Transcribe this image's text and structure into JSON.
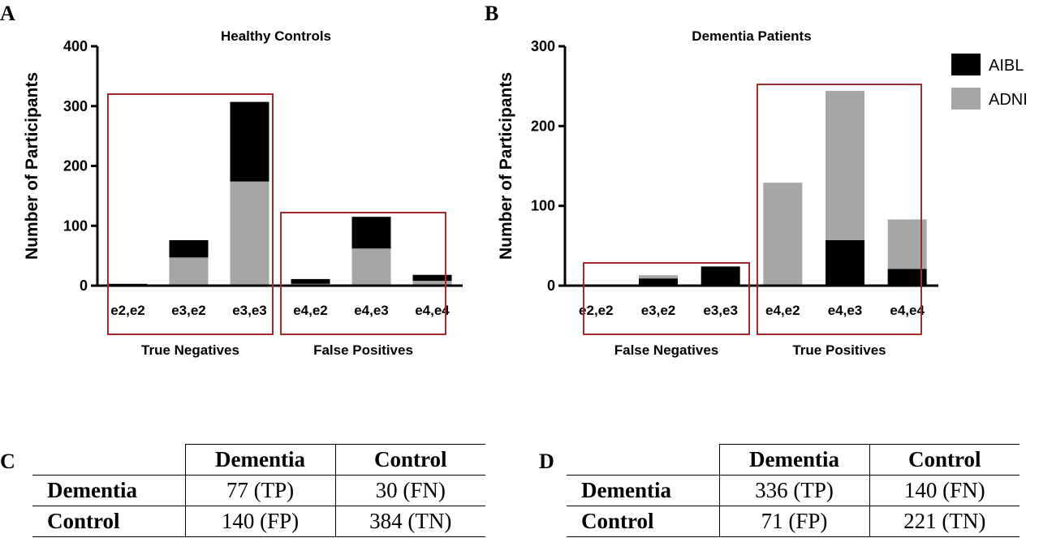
{
  "panels": {
    "a": "A",
    "b": "B",
    "c": "C",
    "d": "D"
  },
  "chart_data": [
    {
      "type": "bar",
      "stacked": true,
      "title": "Healthy Controls",
      "ylabel": "Number of Participants",
      "xlabel": "",
      "ylim": [
        0,
        400
      ],
      "yticks": [
        0,
        100,
        200,
        300,
        400
      ],
      "categories": [
        "e2,e2",
        "e3,e2",
        "e3,e3",
        "e4,e2",
        "e4,e3",
        "e4,e4"
      ],
      "series": [
        {
          "name": "ADNI",
          "color": "#a6a6a6",
          "values": [
            1,
            47,
            174,
            3,
            62,
            8
          ]
        },
        {
          "name": "AIBL",
          "color": "#000000",
          "values": [
            2,
            29,
            133,
            8,
            53,
            10
          ]
        }
      ],
      "groups": [
        {
          "label": "True Negatives",
          "categories": [
            0,
            1,
            2
          ]
        },
        {
          "label": "False Positives",
          "categories": [
            3,
            4,
            5
          ]
        }
      ]
    },
    {
      "type": "bar",
      "stacked": true,
      "title": "Dementia Patients",
      "ylabel": "Number of Participants",
      "xlabel": "",
      "ylim": [
        0,
        300
      ],
      "yticks": [
        0,
        100,
        200,
        300
      ],
      "categories": [
        "e2,e2",
        "e3,e2",
        "e3,e3",
        "e4,e2",
        "e4,e3",
        "e4,e4"
      ],
      "series": [
        {
          "name": "AIBL",
          "color": "#000000",
          "values": [
            0,
            9,
            24,
            0,
            57,
            21
          ]
        },
        {
          "name": "ADNI",
          "color": "#a6a6a6",
          "values": [
            0,
            4,
            0,
            129,
            187,
            62
          ]
        }
      ],
      "legend": {
        "placement": "right",
        "entries": [
          "AIBL",
          "ADNI"
        ]
      },
      "groups": [
        {
          "label": "False Negatives",
          "categories": [
            0,
            1,
            2
          ]
        },
        {
          "label": "True Positives",
          "categories": [
            3,
            4,
            5
          ]
        }
      ]
    }
  ],
  "colors": {
    "box": "#a52a2a",
    "aibl": "#000000",
    "adni": "#a6a6a6"
  },
  "table_c": {
    "headers": [
      "Dementia",
      "Control"
    ],
    "rows": [
      {
        "label": "Dementia",
        "cells": [
          "77 (TP)",
          "30 (FN)"
        ]
      },
      {
        "label": "Control",
        "cells": [
          "140 (FP)",
          "384 (TN)"
        ]
      }
    ]
  },
  "table_d": {
    "headers": [
      "Dementia",
      "Control"
    ],
    "rows": [
      {
        "label": "Dementia",
        "cells": [
          "336 (TP)",
          "140 (FN)"
        ]
      },
      {
        "label": "Control",
        "cells": [
          "71 (FP)",
          "221 (TN)"
        ]
      }
    ]
  }
}
